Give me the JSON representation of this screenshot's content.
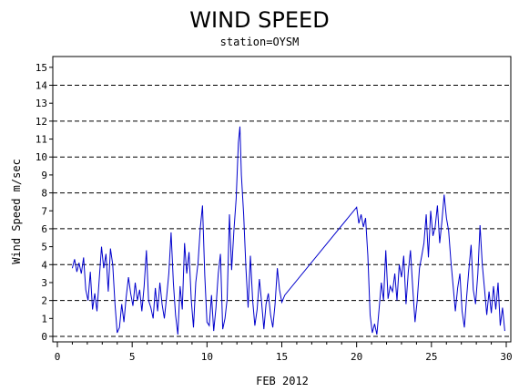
{
  "chart_data": {
    "type": "line",
    "title": "WIND SPEED",
    "subtitle": "station=OYSM",
    "xlabel": "FEB 2012",
    "ylabel": "Wind Speed m/sec",
    "xlim": [
      0,
      30
    ],
    "ylim": [
      0,
      15.5
    ],
    "x_ticks": [
      0,
      5,
      10,
      15,
      20,
      25,
      30
    ],
    "y_ticks": [
      0,
      1,
      2,
      3,
      4,
      5,
      6,
      7,
      8,
      9,
      10,
      11,
      12,
      13,
      14,
      15
    ],
    "reference_lines": [
      0,
      2,
      4,
      6,
      8,
      10,
      12,
      14
    ],
    "line_color": "#0000cc",
    "series": [
      {
        "x": [
          1.0,
          1.15,
          1.3,
          1.45,
          1.6,
          1.75,
          1.9,
          2.05,
          2.2,
          2.35,
          2.5,
          2.65,
          2.8,
          2.95,
          3.1,
          3.25,
          3.4,
          3.55,
          3.7,
          3.85,
          4.0,
          4.15,
          4.3,
          4.45,
          4.6,
          4.75,
          4.9,
          5.05,
          5.2,
          5.35,
          5.5,
          5.65,
          5.8,
          5.95,
          6.1,
          6.25,
          6.4,
          6.55,
          6.7,
          6.85,
          7.0,
          7.15,
          7.3,
          7.45,
          7.6,
          7.75,
          7.9,
          8.05,
          8.2,
          8.35,
          8.5,
          8.65,
          8.8,
          8.95,
          9.1,
          9.25,
          9.4,
          9.55,
          9.7,
          9.85,
          10.0,
          10.15,
          10.3,
          10.45,
          10.6,
          10.75,
          10.9,
          11.05,
          11.2,
          11.35,
          11.5,
          11.65,
          11.8,
          11.95,
          12.1,
          12.2,
          12.3,
          12.45,
          12.6,
          12.75,
          12.9,
          13.05,
          13.2,
          13.35,
          13.5,
          13.65,
          13.8,
          13.95,
          14.1,
          14.25,
          14.4,
          14.55,
          14.7,
          14.85,
          15.0,
          15.2,
          20.0,
          20.15,
          20.3,
          20.45,
          20.6,
          20.75,
          20.9,
          21.05,
          21.2,
          21.35,
          21.5,
          21.65,
          21.8,
          21.95,
          22.1,
          22.25,
          22.4,
          22.55,
          22.7,
          22.85,
          23.0,
          23.15,
          23.3,
          23.45,
          23.6,
          23.75,
          23.9,
          24.05,
          24.2,
          24.35,
          24.5,
          24.65,
          24.8,
          24.95,
          25.1,
          25.25,
          25.4,
          25.55,
          25.7,
          25.85,
          26.0,
          26.15,
          26.3,
          26.45,
          26.6,
          26.75,
          26.9,
          27.05,
          27.2,
          27.35,
          27.5,
          27.65,
          27.8,
          27.95,
          28.1,
          28.25,
          28.4,
          28.55,
          28.7,
          28.85,
          29.0,
          29.15,
          29.3,
          29.45,
          29.6,
          29.75,
          29.9
        ],
        "y": [
          3.8,
          4.3,
          3.6,
          4.1,
          3.5,
          4.4,
          2.6,
          2.0,
          3.6,
          1.5,
          2.4,
          1.4,
          3.2,
          5.0,
          3.8,
          4.6,
          2.5,
          4.9,
          4.0,
          1.8,
          0.2,
          0.5,
          1.8,
          0.8,
          2.2,
          3.3,
          2.4,
          1.7,
          3.0,
          2.0,
          2.6,
          1.4,
          2.8,
          4.8,
          2.0,
          1.6,
          1.0,
          2.7,
          1.4,
          3.0,
          1.8,
          1.0,
          2.2,
          3.5,
          5.8,
          3.0,
          1.2,
          0.1,
          2.8,
          1.5,
          5.2,
          3.5,
          4.7,
          2.0,
          0.5,
          3.0,
          4.1,
          6.0,
          7.3,
          3.4,
          0.8,
          0.6,
          2.3,
          0.3,
          1.6,
          3.5,
          4.6,
          0.4,
          1.0,
          2.1,
          6.8,
          3.7,
          5.9,
          7.7,
          10.8,
          11.7,
          9.0,
          6.8,
          3.8,
          1.6,
          4.5,
          2.0,
          0.6,
          1.5,
          3.2,
          1.9,
          0.4,
          1.8,
          2.4,
          1.2,
          0.5,
          1.8,
          3.8,
          2.6,
          1.9,
          2.3,
          7.2,
          6.3,
          6.8,
          6.1,
          6.6,
          4.5,
          1.2,
          0.2,
          0.7,
          0.1,
          1.5,
          3.0,
          2.0,
          4.8,
          2.1,
          2.8,
          2.5,
          3.5,
          2.0,
          4.0,
          3.3,
          4.5,
          1.8,
          3.6,
          4.8,
          2.7,
          0.8,
          2.0,
          3.8,
          4.5,
          5.2,
          6.8,
          4.4,
          7.0,
          5.6,
          6.1,
          7.3,
          5.2,
          6.4,
          7.9,
          6.6,
          5.9,
          4.2,
          2.8,
          1.4,
          2.7,
          3.5,
          1.4,
          0.5,
          2.2,
          3.7,
          5.1,
          2.6,
          1.8,
          3.5,
          6.2,
          4.0,
          2.6,
          1.2,
          2.5,
          1.3,
          2.8,
          1.5,
          3.0,
          0.6,
          1.6,
          0.3
        ]
      }
    ]
  }
}
